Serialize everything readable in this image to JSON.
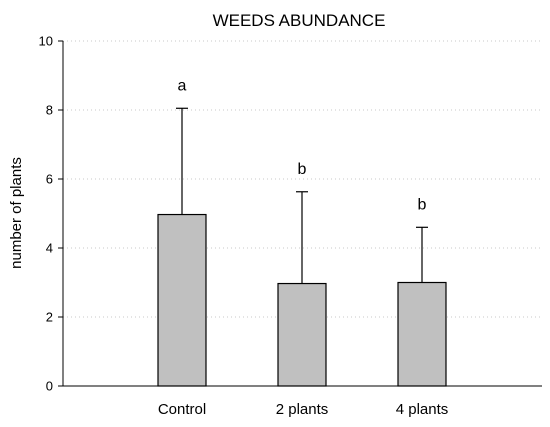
{
  "chart_data": {
    "type": "bar",
    "title": "WEEDS ABUNDANCE",
    "xlabel": "",
    "ylabel": "number of plants",
    "categories": [
      "Control",
      "2 plants",
      "4 plants"
    ],
    "values": [
      4.97,
      2.97,
      3.0
    ],
    "error_upper": [
      8.05,
      5.63,
      4.6
    ],
    "significance_letters": [
      "a",
      "b",
      "b"
    ],
    "ylim": [
      0,
      10
    ],
    "yticks": [
      0,
      2,
      4,
      6,
      8,
      10
    ],
    "y_tick_labels": [
      "0",
      "2",
      "4",
      "6",
      "8",
      "10"
    ],
    "grid": true,
    "bar_color": "#c0c0c0",
    "grid_color": "#c8c8c8"
  }
}
